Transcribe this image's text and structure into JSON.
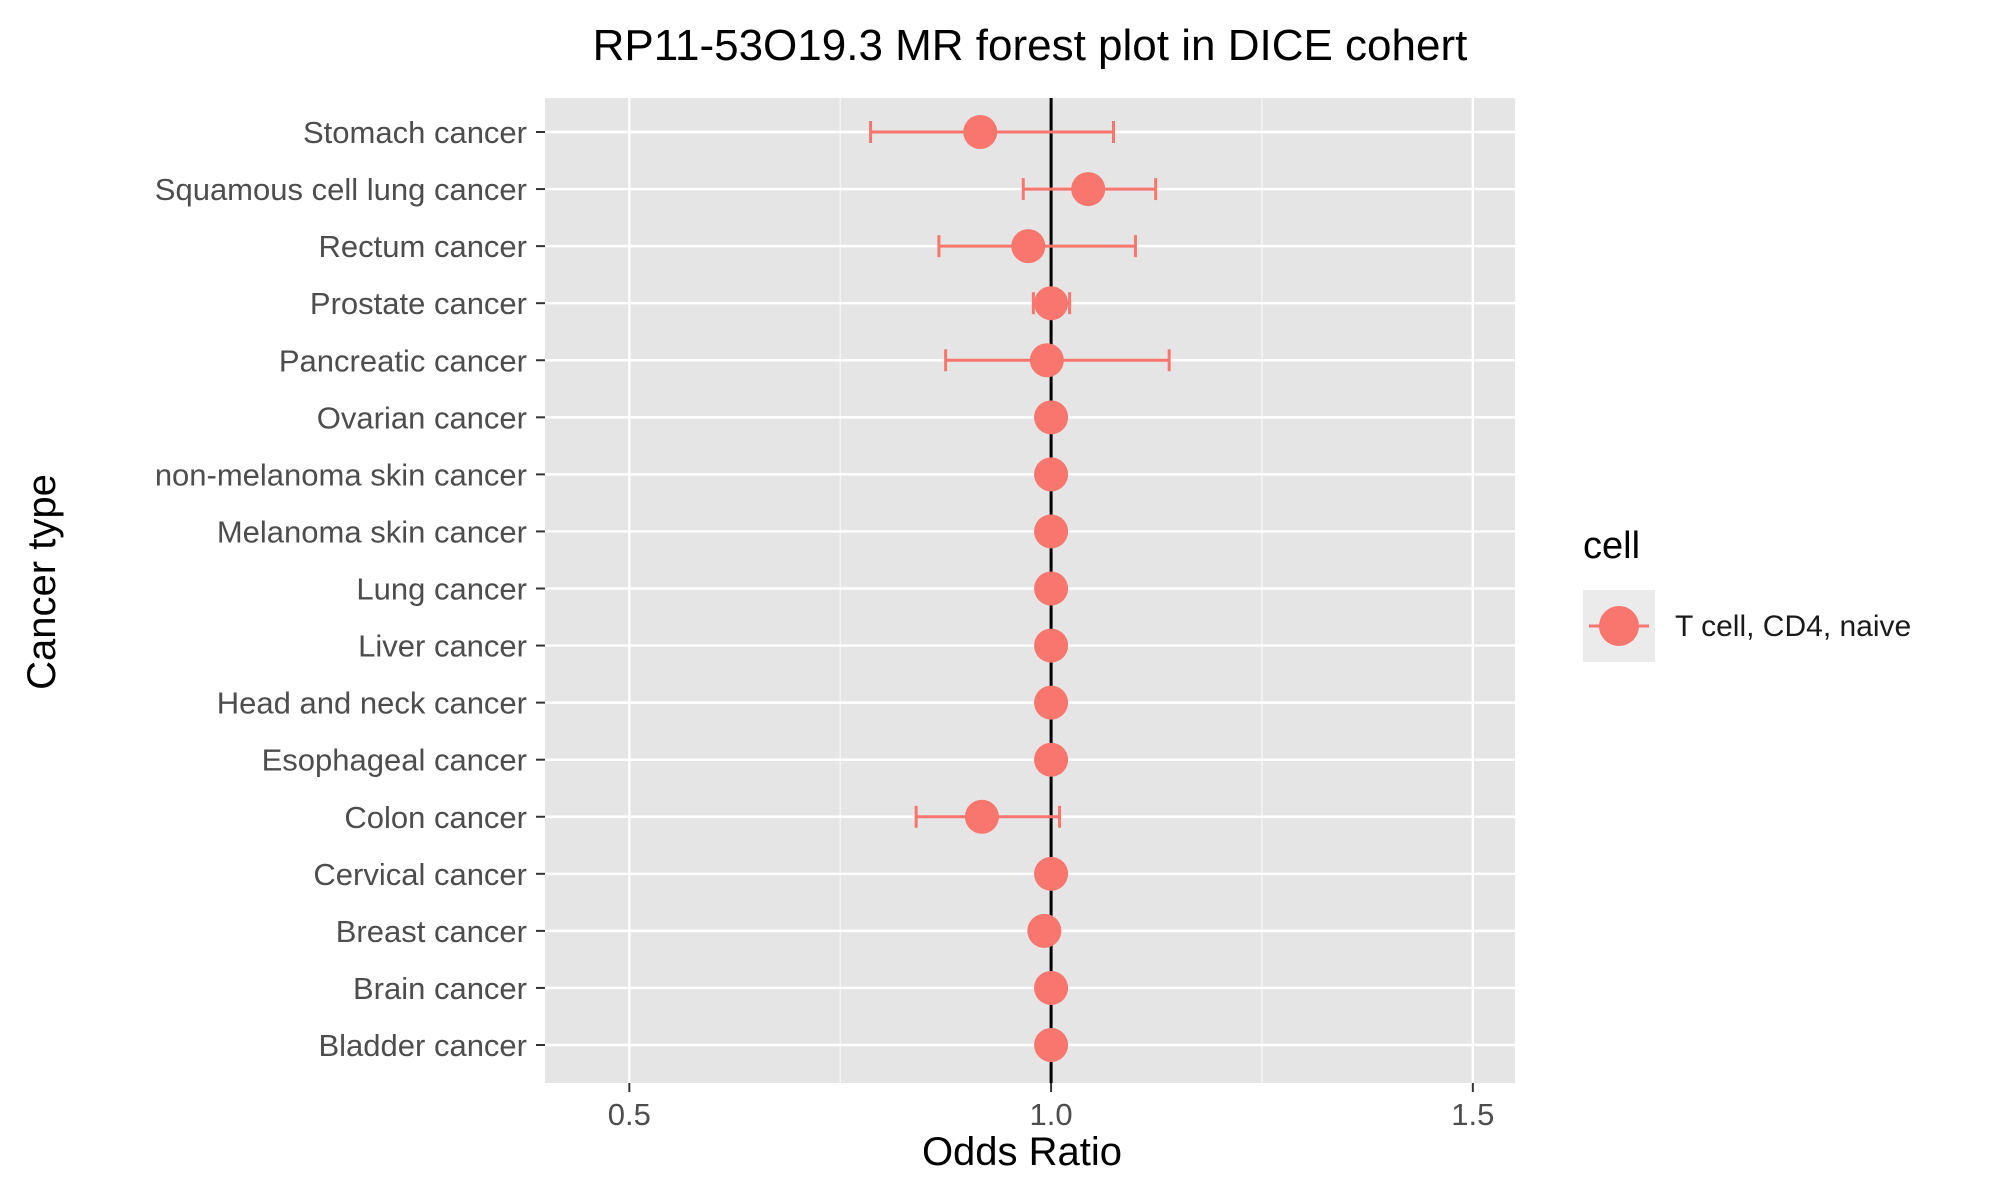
{
  "chart_data": {
    "type": "scatter",
    "title": "RP11-53O19.3 MR forest plot in DICE cohert",
    "xlabel": "Odds Ratio",
    "ylabel": "Cancer type",
    "xlim": [
      0.4,
      1.55
    ],
    "x_ticks": [
      0.5,
      1.0,
      1.5
    ],
    "x_tick_labels": [
      "0.5",
      "1.0",
      "1.5"
    ],
    "reference_line": 1.0,
    "grid": true,
    "legend": {
      "title": "cell",
      "position": "right",
      "entries": [
        "T cell, CD4, naive"
      ]
    },
    "colors": {
      "series": "#F8766D",
      "panel": "#E5E5E5",
      "grid": "#FFFFFF",
      "reference": "#000000"
    },
    "categories": [
      "Stomach cancer",
      "Squamous cell lung cancer",
      "Rectum cancer",
      "Prostate cancer",
      "Pancreatic cancer",
      "Ovarian cancer",
      "non-melanoma skin cancer",
      "Melanoma skin cancer",
      "Lung cancer",
      "Liver cancer",
      "Head and neck cancer",
      "Esophageal cancer",
      "Colon cancer",
      "Cervical cancer",
      "Breast cancer",
      "Brain cancer",
      "Bladder cancer"
    ],
    "series": [
      {
        "name": "T cell, CD4, naive",
        "or": [
          0.916,
          1.044,
          0.973,
          1.0,
          0.995,
          1.0,
          1.0,
          1.0,
          1.0,
          1.0,
          1.0,
          1.0,
          0.918,
          1.0,
          0.992,
          1.0,
          1.0
        ],
        "lower": [
          0.786,
          0.967,
          0.867,
          0.979,
          0.875,
          null,
          null,
          null,
          null,
          null,
          null,
          null,
          0.84,
          null,
          null,
          null,
          null
        ],
        "upper": [
          1.074,
          1.124,
          1.1,
          1.022,
          1.14,
          null,
          null,
          null,
          null,
          null,
          null,
          null,
          1.01,
          null,
          null,
          null,
          null
        ]
      }
    ]
  }
}
